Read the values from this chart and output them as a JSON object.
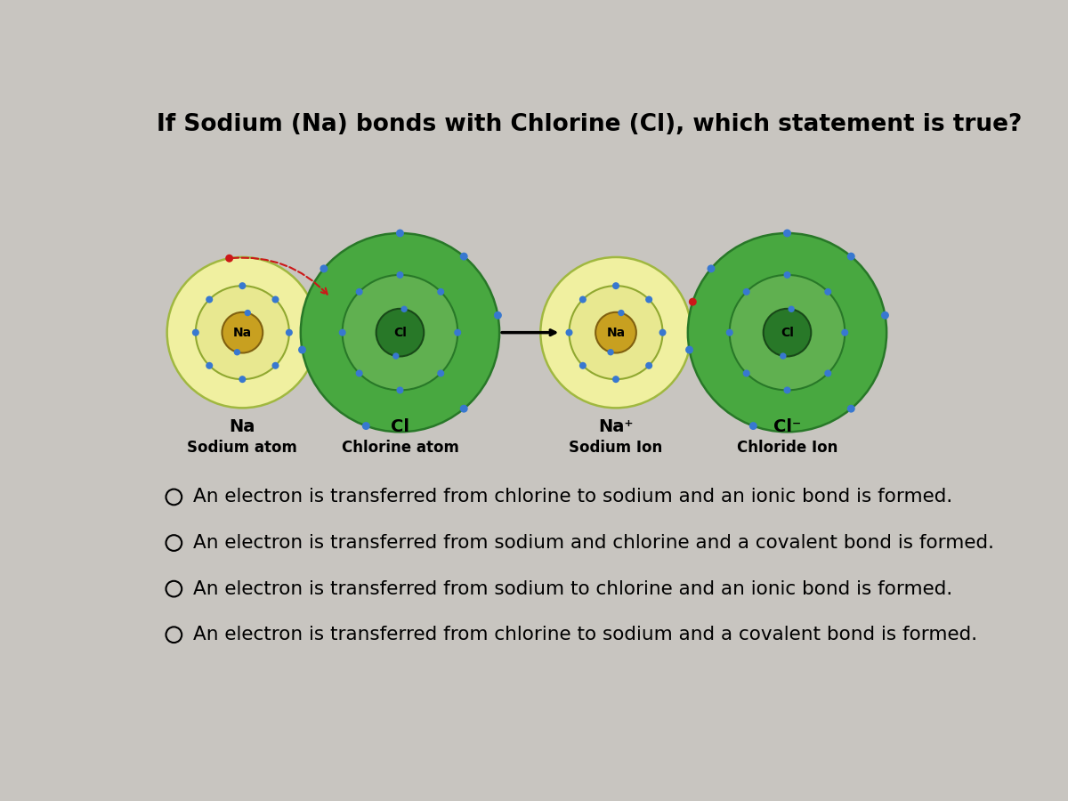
{
  "title": "If Sodium (Na) bonds with Chlorine (Cl), which statement is true?",
  "title_fontsize": 19,
  "bg_color": "#c8c5c0",
  "choices": [
    "An electron is transferred from chlorine to sodium and an ionic bond is formed.",
    "An electron is transferred from sodium and chlorine and a covalent bond is formed.",
    "An electron is transferred from sodium to chlorine and an ionic bond is formed.",
    "An electron is transferred from chlorine to sodium and a covalent bond is formed."
  ],
  "choice_fontsize": 15.5,
  "na_outer_color": "#f0f0a0",
  "na_outer_edge": "#a0b840",
  "na_shell2_color": "#e8e890",
  "na_shell2_edge": "#90a830",
  "na_core_color": "#c8a020",
  "na_core_edge": "#806010",
  "cl_outer_color": "#48a840",
  "cl_outer_edge": "#287828",
  "cl_shell2_color": "#60b050",
  "cl_shell2_edge": "#287828",
  "cl_core_color": "#287828",
  "cl_core_edge": "#184818",
  "electron_color": "#3878d0",
  "electron_red_color": "#cc1818",
  "label_bold_size": 14,
  "label_sub_size": 12
}
